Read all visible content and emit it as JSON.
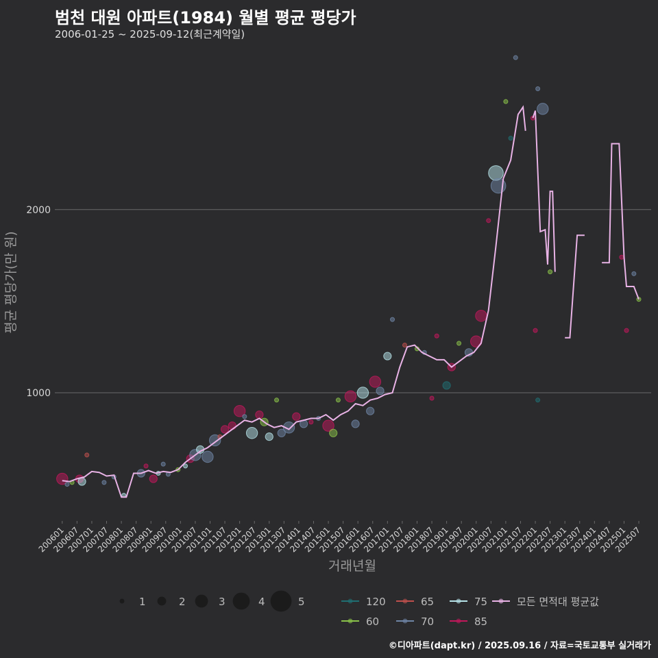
{
  "chart_data": {
    "type": "line",
    "title": "범천 대원 아파트(1984) 월별 평균 평당가",
    "subtitle": "2006-01-25 ~ 2025-09-12(최근계약일)",
    "xlabel": "거래년월",
    "ylabel": "평균 평당가(만 원)",
    "credit": "©디아파트(dapt.kr) / 2025.09.16 / 자료=국토교통부 실거래가",
    "x_range": [
      "2005-10",
      "2025-12"
    ],
    "ylim": [
      300,
      2920
    ],
    "yticks": [
      1000,
      2000
    ],
    "grid": true,
    "legend_position": "bottom",
    "x_tick_labels": [
      "200601",
      "200607",
      "200701",
      "200707",
      "200801",
      "200807",
      "200901",
      "200907",
      "201001",
      "201007",
      "201101",
      "201107",
      "201201",
      "201207",
      "201301",
      "201307",
      "201401",
      "201407",
      "201501",
      "201507",
      "201601",
      "201607",
      "201701",
      "201707",
      "201801",
      "201807",
      "201901",
      "201907",
      "202001",
      "202007",
      "202101",
      "202107",
      "202201",
      "202207",
      "202301",
      "202307",
      "202401",
      "202407",
      "202501",
      "202507"
    ],
    "size_legend": {
      "values": [
        "1",
        "2",
        "3",
        "4",
        "5"
      ]
    },
    "area_legend": [
      {
        "label": "120",
        "color": "#1f6f73"
      },
      {
        "label": "65",
        "color": "#c0504d"
      },
      {
        "label": "75",
        "color": "#b6e3e9"
      },
      {
        "label": "모든 면적대 평균값",
        "color": "#e9b3e6"
      },
      {
        "label": "60",
        "color": "#8bc34a"
      },
      {
        "label": "70",
        "color": "#6f86a6"
      },
      {
        "label": "85",
        "color": "#c2185b"
      }
    ],
    "series": [
      {
        "name": "모든 면적대 평균값",
        "color": "#e9b3e6",
        "segments": [
          [
            [
              "2006-01",
              520
            ],
            [
              "2006-04",
              515
            ],
            [
              "2006-07",
              530
            ],
            [
              "2006-10",
              540
            ],
            [
              "2007-01",
              570
            ],
            [
              "2007-04",
              565
            ],
            [
              "2007-07",
              545
            ],
            [
              "2007-10",
              550
            ],
            [
              "2008-01",
              430
            ],
            [
              "2008-03",
              430
            ],
            [
              "2008-06",
              560
            ],
            [
              "2008-09",
              560
            ],
            [
              "2008-12",
              575
            ],
            [
              "2009-03",
              560
            ],
            [
              "2009-06",
              570
            ],
            [
              "2009-09",
              565
            ],
            [
              "2009-12",
              580
            ],
            [
              "2010-03",
              620
            ],
            [
              "2010-06",
              650
            ],
            [
              "2010-09",
              680
            ],
            [
              "2010-12",
              700
            ],
            [
              "2011-03",
              730
            ],
            [
              "2011-06",
              760
            ],
            [
              "2011-09",
              790
            ],
            [
              "2011-12",
              820
            ],
            [
              "2012-03",
              850
            ],
            [
              "2012-06",
              840
            ],
            [
              "2012-09",
              860
            ],
            [
              "2012-12",
              830
            ],
            [
              "2013-03",
              810
            ],
            [
              "2013-06",
              820
            ],
            [
              "2013-09",
              800
            ],
            [
              "2013-12",
              840
            ],
            [
              "2014-03",
              850
            ],
            [
              "2014-06",
              860
            ],
            [
              "2014-09",
              860
            ],
            [
              "2014-12",
              880
            ],
            [
              "2015-03",
              850
            ],
            [
              "2015-06",
              880
            ],
            [
              "2015-09",
              900
            ],
            [
              "2015-12",
              940
            ],
            [
              "2016-03",
              930
            ],
            [
              "2016-06",
              960
            ],
            [
              "2016-09",
              970
            ],
            [
              "2016-12",
              990
            ],
            [
              "2017-03",
              1000
            ],
            [
              "2017-06",
              1140
            ],
            [
              "2017-09",
              1250
            ],
            [
              "2017-12",
              1260
            ],
            [
              "2018-03",
              1220
            ],
            [
              "2018-06",
              1200
            ],
            [
              "2018-09",
              1180
            ],
            [
              "2018-12",
              1180
            ],
            [
              "2019-03",
              1140
            ],
            [
              "2019-06",
              1170
            ],
            [
              "2019-09",
              1200
            ],
            [
              "2019-12",
              1220
            ],
            [
              "2020-03",
              1270
            ],
            [
              "2020-06",
              1450
            ],
            [
              "2020-09",
              1800
            ],
            [
              "2020-12",
              2170
            ],
            [
              "2021-03",
              2270
            ],
            [
              "2021-06",
              2520
            ],
            [
              "2021-08",
              2560
            ],
            [
              "2021-09",
              2430
            ]
          ],
          [
            [
              "2021-12",
              2500
            ],
            [
              "2022-01",
              2540
            ],
            [
              "2022-03",
              1880
            ],
            [
              "2022-05",
              1890
            ],
            [
              "2022-06",
              1700
            ],
            [
              "2022-07",
              2100
            ],
            [
              "2022-08",
              2100
            ],
            [
              "2022-09",
              1660
            ]
          ],
          [
            [
              "2023-01",
              1300
            ],
            [
              "2023-03",
              1300
            ],
            [
              "2023-06",
              1860
            ],
            [
              "2023-09",
              1860
            ]
          ],
          [
            [
              "2024-04",
              1710
            ],
            [
              "2024-07",
              1710
            ],
            [
              "2024-08",
              2360
            ],
            [
              "2024-11",
              2360
            ],
            [
              "2025-01",
              1740
            ],
            [
              "2025-02",
              1580
            ],
            [
              "2025-05",
              1580
            ],
            [
              "2025-07",
              1510
            ]
          ]
        ]
      }
    ],
    "points": [
      {
        "x": "2006-01",
        "y": 530,
        "a": "85",
        "n": 3
      },
      {
        "x": "2006-03",
        "y": 500,
        "a": "70",
        "n": 1
      },
      {
        "x": "2006-05",
        "y": 510,
        "a": "60",
        "n": 1
      },
      {
        "x": "2006-08",
        "y": 530,
        "a": "85",
        "n": 2
      },
      {
        "x": "2006-09",
        "y": 515,
        "a": "75",
        "n": 2
      },
      {
        "x": "2006-11",
        "y": 660,
        "a": "65",
        "n": 1
      },
      {
        "x": "2007-06",
        "y": 510,
        "a": "70",
        "n": 1
      },
      {
        "x": "2007-10",
        "y": 540,
        "a": "70",
        "n": 1
      },
      {
        "x": "2008-02",
        "y": 440,
        "a": "75",
        "n": 1
      },
      {
        "x": "2008-09",
        "y": 560,
        "a": "70",
        "n": 2
      },
      {
        "x": "2008-11",
        "y": 600,
        "a": "85",
        "n": 1
      },
      {
        "x": "2009-02",
        "y": 530,
        "a": "85",
        "n": 2
      },
      {
        "x": "2009-04",
        "y": 560,
        "a": "75",
        "n": 1
      },
      {
        "x": "2009-06",
        "y": 610,
        "a": "70",
        "n": 1
      },
      {
        "x": "2009-08",
        "y": 555,
        "a": "70",
        "n": 1
      },
      {
        "x": "2009-12",
        "y": 580,
        "a": "60",
        "n": 1
      },
      {
        "x": "2010-03",
        "y": 600,
        "a": "75",
        "n": 1
      },
      {
        "x": "2010-05",
        "y": 640,
        "a": "85",
        "n": 2
      },
      {
        "x": "2010-07",
        "y": 660,
        "a": "70",
        "n": 3
      },
      {
        "x": "2010-09",
        "y": 690,
        "a": "75",
        "n": 2
      },
      {
        "x": "2010-12",
        "y": 650,
        "a": "70",
        "n": 3
      },
      {
        "x": "2011-03",
        "y": 740,
        "a": "70",
        "n": 3
      },
      {
        "x": "2011-05",
        "y": 760,
        "a": "65",
        "n": 1
      },
      {
        "x": "2011-07",
        "y": 800,
        "a": "85",
        "n": 2
      },
      {
        "x": "2011-10",
        "y": 820,
        "a": "85",
        "n": 2
      },
      {
        "x": "2012-01",
        "y": 900,
        "a": "85",
        "n": 3
      },
      {
        "x": "2012-03",
        "y": 870,
        "a": "70",
        "n": 1
      },
      {
        "x": "2012-06",
        "y": 780,
        "a": "75",
        "n": 3
      },
      {
        "x": "2012-09",
        "y": 880,
        "a": "85",
        "n": 2
      },
      {
        "x": "2012-11",
        "y": 840,
        "a": "60",
        "n": 2
      },
      {
        "x": "2013-01",
        "y": 760,
        "a": "75",
        "n": 2
      },
      {
        "x": "2013-04",
        "y": 960,
        "a": "60",
        "n": 1
      },
      {
        "x": "2013-06",
        "y": 780,
        "a": "70",
        "n": 2
      },
      {
        "x": "2013-09",
        "y": 810,
        "a": "70",
        "n": 3
      },
      {
        "x": "2013-12",
        "y": 870,
        "a": "85",
        "n": 2
      },
      {
        "x": "2014-03",
        "y": 830,
        "a": "70",
        "n": 2
      },
      {
        "x": "2014-06",
        "y": 840,
        "a": "85",
        "n": 1
      },
      {
        "x": "2014-09",
        "y": 860,
        "a": "70",
        "n": 1
      },
      {
        "x": "2015-01",
        "y": 820,
        "a": "85",
        "n": 3
      },
      {
        "x": "2015-03",
        "y": 780,
        "a": "60",
        "n": 2
      },
      {
        "x": "2015-05",
        "y": 960,
        "a": "60",
        "n": 1
      },
      {
        "x": "2015-10",
        "y": 980,
        "a": "85",
        "n": 3
      },
      {
        "x": "2015-12",
        "y": 830,
        "a": "70",
        "n": 2
      },
      {
        "x": "2016-03",
        "y": 1000,
        "a": "75",
        "n": 3
      },
      {
        "x": "2016-06",
        "y": 900,
        "a": "70",
        "n": 2
      },
      {
        "x": "2016-08",
        "y": 1060,
        "a": "85",
        "n": 3
      },
      {
        "x": "2016-10",
        "y": 1010,
        "a": "70",
        "n": 2
      },
      {
        "x": "2017-01",
        "y": 1200,
        "a": "75",
        "n": 2
      },
      {
        "x": "2017-03",
        "y": 1400,
        "a": "70",
        "n": 1
      },
      {
        "x": "2017-08",
        "y": 1260,
        "a": "65",
        "n": 1
      },
      {
        "x": "2018-01",
        "y": 1240,
        "a": "60",
        "n": 1
      },
      {
        "x": "2018-04",
        "y": 1220,
        "a": "70",
        "n": 1
      },
      {
        "x": "2018-07",
        "y": 970,
        "a": "85",
        "n": 1
      },
      {
        "x": "2018-09",
        "y": 1310,
        "a": "85",
        "n": 1
      },
      {
        "x": "2019-01",
        "y": 1040,
        "a": "120",
        "n": 2
      },
      {
        "x": "2019-03",
        "y": 1140,
        "a": "85",
        "n": 2
      },
      {
        "x": "2019-06",
        "y": 1270,
        "a": "60",
        "n": 1
      },
      {
        "x": "2019-10",
        "y": 1220,
        "a": "70",
        "n": 2
      },
      {
        "x": "2020-01",
        "y": 1280,
        "a": "85",
        "n": 3
      },
      {
        "x": "2020-03",
        "y": 1420,
        "a": "85",
        "n": 3
      },
      {
        "x": "2020-06",
        "y": 1940,
        "a": "85",
        "n": 1
      },
      {
        "x": "2020-09",
        "y": 2200,
        "a": "75",
        "n": 4
      },
      {
        "x": "2020-10",
        "y": 2130,
        "a": "70",
        "n": 4
      },
      {
        "x": "2021-01",
        "y": 2590,
        "a": "60",
        "n": 1
      },
      {
        "x": "2021-03",
        "y": 2390,
        "a": "120",
        "n": 1
      },
      {
        "x": "2021-05",
        "y": 2830,
        "a": "70",
        "n": 1
      },
      {
        "x": "2021-12",
        "y": 2500,
        "a": "85",
        "n": 1
      },
      {
        "x": "2022-02",
        "y": 2660,
        "a": "70",
        "n": 1
      },
      {
        "x": "2022-04",
        "y": 2550,
        "a": "70",
        "n": 3
      },
      {
        "x": "2022-07",
        "y": 1660,
        "a": "60",
        "n": 1
      },
      {
        "x": "2022-01",
        "y": 1340,
        "a": "85",
        "n": 1
      },
      {
        "x": "2022-02",
        "y": 960,
        "a": "120",
        "n": 1
      },
      {
        "x": "2024-12",
        "y": 1740,
        "a": "85",
        "n": 1
      },
      {
        "x": "2025-02",
        "y": 1340,
        "a": "85",
        "n": 1
      },
      {
        "x": "2025-05",
        "y": 1650,
        "a": "70",
        "n": 1
      },
      {
        "x": "2025-07",
        "y": 1510,
        "a": "60",
        "n": 1
      }
    ]
  }
}
